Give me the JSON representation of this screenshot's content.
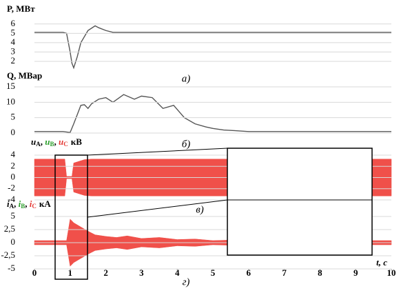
{
  "chart_data": [
    {
      "type": "line",
      "ylabel": "P, МВт",
      "panel_label": "а)",
      "xlim": [
        0,
        10
      ],
      "ylim": [
        1,
        6.5
      ],
      "yticks": [
        2,
        3,
        4,
        5,
        6
      ],
      "grid": true,
      "series": [
        {
          "color": "#555555",
          "x": [
            0,
            0.8,
            0.9,
            1,
            1.05,
            1.1,
            1.2,
            1.3,
            1.5,
            1.7,
            1.8,
            2,
            2.2,
            2.5,
            3,
            10
          ],
          "values": [
            5.1,
            5.1,
            5,
            3,
            1.8,
            1.3,
            2.5,
            4,
            5.3,
            5.8,
            5.6,
            5.3,
            5.1,
            5.1,
            5.1,
            5.1
          ]
        }
      ]
    },
    {
      "type": "line",
      "ylabel": "Q, МВар",
      "panel_label": "б)",
      "xlim": [
        0,
        10
      ],
      "ylim": [
        -1,
        16
      ],
      "yticks": [
        0,
        5,
        10,
        15
      ],
      "grid": true,
      "series": [
        {
          "color": "#555555",
          "x": [
            0,
            0.8,
            1,
            1.1,
            1.2,
            1.3,
            1.4,
            1.5,
            1.6,
            1.8,
            2,
            2.2,
            2.5,
            2.8,
            3,
            3.3,
            3.6,
            3.9,
            4.2,
            4.5,
            4.8,
            5,
            5.3,
            5.6,
            6,
            10
          ],
          "values": [
            0.5,
            0.5,
            0.2,
            3,
            6,
            9,
            9.2,
            8,
            9.5,
            11,
            11.5,
            10,
            12.5,
            11,
            12,
            11.5,
            8,
            9,
            5,
            3,
            2,
            1.5,
            1,
            0.8,
            0.5,
            0.5
          ]
        }
      ]
    },
    {
      "type": "envelope",
      "ylabel_parts": [
        {
          "symbol": "u",
          "subscript": "А",
          "color": "#000000"
        },
        {
          "symbol": "u",
          "subscript": "В",
          "color": "#2a9d2a"
        },
        {
          "symbol": "u",
          "subscript": "С",
          "color": "#e53935"
        }
      ],
      "separator": ", ",
      "unit": "кВ",
      "panel_label": "в)",
      "xlim": [
        0,
        10
      ],
      "ylim": [
        -4.5,
        4.5
      ],
      "yticks": [
        4,
        2,
        0,
        -2,
        -4
      ],
      "grid": true,
      "series": [
        {
          "color": "#f0504a",
          "x": [
            0,
            0.85,
            0.9,
            1.05,
            1.1,
            1.2,
            1.4,
            1.6,
            10
          ],
          "values": [
            3.3,
            3.3,
            0.2,
            0.2,
            2.6,
            2.8,
            3.2,
            3.3,
            3.3
          ]
        }
      ]
    },
    {
      "type": "envelope",
      "ylabel_parts": [
        {
          "symbol": "i",
          "subscript": "А",
          "color": "#000000"
        },
        {
          "symbol": "i",
          "subscript": "В",
          "color": "#2a9d2a"
        },
        {
          "symbol": "i",
          "subscript": "С",
          "color": "#e53935"
        }
      ],
      "separator": ", ",
      "unit": "кА",
      "panel_label": "г)",
      "xlabel": "t, с",
      "xlim": [
        0,
        10
      ],
      "ylim": [
        -5,
        5
      ],
      "yticks": [
        5,
        {
          "value": 2.5,
          "label": "2,5"
        },
        0,
        {
          "value": -2.5,
          "label": "-2,5"
        },
        -5
      ],
      "xticks": [
        0,
        1,
        2,
        3,
        4,
        5,
        6,
        7,
        8,
        9,
        10
      ],
      "grid": true,
      "series": [
        {
          "color": "#f0504a",
          "x": [
            0,
            0.9,
            1,
            1.1,
            1.3,
            1.5,
            1.7,
            2,
            2.3,
            2.6,
            3,
            3.5,
            4,
            4.5,
            5,
            5.5,
            6,
            10
          ],
          "values": [
            0.4,
            0.4,
            4.5,
            3.8,
            3,
            2.2,
            1.5,
            1.2,
            1,
            1.3,
            0.8,
            1,
            0.6,
            0.7,
            0.4,
            0.5,
            0.4,
            0.4
          ]
        }
      ]
    }
  ]
}
